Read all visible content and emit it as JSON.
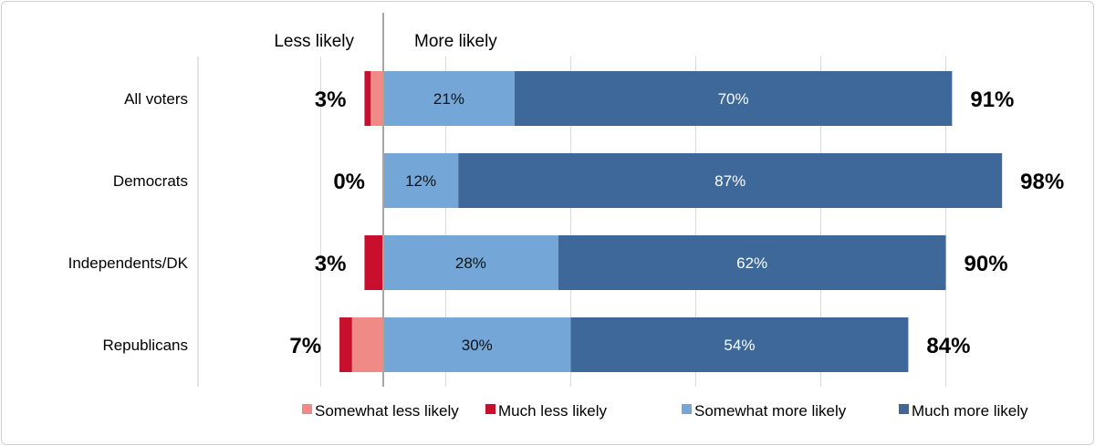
{
  "chart_data": {
    "type": "bar",
    "orientation": "horizontal",
    "stacked": "diverging",
    "header_left": "Less likely",
    "header_right": "More likely",
    "categories": [
      "All voters",
      "Democrats",
      "Independents/DK",
      "Republicans"
    ],
    "series": [
      {
        "name": "Somewhat less likely",
        "values": [
          2,
          0,
          0,
          5
        ],
        "color": "#f08a87",
        "side": "negative"
      },
      {
        "name": "Much less likely",
        "values": [
          1,
          0,
          3,
          2
        ],
        "color": "#c8102e",
        "side": "negative"
      },
      {
        "name": "Somewhat more likely",
        "values": [
          21,
          12,
          28,
          30
        ],
        "color": "#74a7d8",
        "side": "positive"
      },
      {
        "name": "Much more likely",
        "values": [
          70,
          87,
          62,
          54
        ],
        "color": "#3e6899",
        "side": "positive"
      }
    ],
    "segment_labels": {
      "Somewhat more likely": [
        "21%",
        "12%",
        "28%",
        "30%"
      ],
      "Much more likely": [
        "70%",
        "87%",
        "62%",
        "54%"
      ]
    },
    "less_totals": [
      "3%",
      "0%",
      "3%",
      "7%"
    ],
    "more_totals": [
      "91%",
      "98%",
      "90%",
      "84%"
    ],
    "xlim": [
      -10,
      100
    ],
    "grid": true,
    "legend_position": "bottom-right"
  }
}
